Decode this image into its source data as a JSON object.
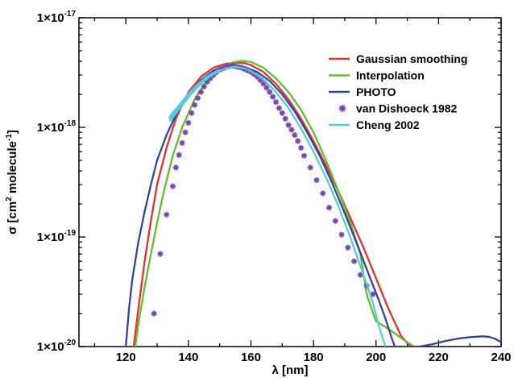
{
  "chart_data": {
    "type": "line",
    "xlabel": "λ [nm]",
    "ylabel": {
      "base": "σ [cm",
      "sup1": "2",
      "mid": " molecule",
      "sup2": "-1",
      "end": "]"
    },
    "xlim": [
      105,
      240
    ],
    "ylim": [
      1e-20,
      1e-17
    ],
    "yscale": "log",
    "x_ticks": [
      120,
      140,
      160,
      180,
      200,
      220,
      240
    ],
    "y_ticks": [
      {
        "value": 1e-20,
        "base": "1×10",
        "exp": "-20"
      },
      {
        "value": 1e-19,
        "base": "1×10",
        "exp": "-19"
      },
      {
        "value": 1e-18,
        "base": "1×10",
        "exp": "-18"
      },
      {
        "value": 1e-17,
        "base": "1×10",
        "exp": "-17"
      }
    ],
    "grid": false,
    "legend_position": "top-right",
    "series": [
      {
        "name": "Gaussian smoothing",
        "color": "#e03030",
        "style": "line",
        "x": [
          122.5,
          124,
          126,
          128,
          130,
          133,
          136,
          140,
          144,
          148,
          152,
          156,
          158,
          160,
          164,
          168,
          172,
          176,
          180,
          184,
          188,
          192,
          196,
          200,
          204,
          208,
          211
        ],
        "y": [
          1e-20,
          2.2e-20,
          6e-20,
          1.4e-19,
          3e-19,
          6.5e-19,
          1.2e-18,
          2.1e-18,
          2.9e-18,
          3.5e-18,
          3.8e-18,
          3.9e-18,
          3.85e-18,
          3.7e-18,
          3.2e-18,
          2.5e-18,
          1.8e-18,
          1.2e-18,
          7.5e-19,
          4.5e-19,
          2.6e-19,
          1.45e-19,
          8e-20,
          4.2e-20,
          2.2e-20,
          1.25e-20,
          1e-20
        ]
      },
      {
        "name": "Interpolation",
        "color": "#66bb33",
        "style": "line",
        "x": [
          123,
          124,
          126,
          128,
          130,
          132,
          135,
          138,
          142,
          146,
          150,
          154,
          157,
          160,
          164,
          168,
          172,
          176,
          180,
          184,
          188,
          192,
          195,
          197,
          200,
          204,
          208,
          212
        ],
        "y": [
          1e-20,
          1.6e-20,
          3.5e-20,
          7e-20,
          1.35e-19,
          2.5e-19,
          5.5e-19,
          1e-18,
          1.8e-18,
          2.7e-18,
          3.4e-18,
          3.9e-18,
          4.05e-18,
          3.95e-18,
          3.5e-18,
          2.8e-18,
          2.1e-18,
          1.45e-18,
          9e-19,
          5e-19,
          2.6e-19,
          1.3e-19,
          7e-20,
          3e-20,
          1.7e-20,
          1.45e-20,
          1.2e-20,
          1e-20
        ]
      },
      {
        "name": "PHOTO",
        "color": "#33449a",
        "style": "line",
        "x": [
          120,
          121,
          122,
          124,
          126,
          128,
          130,
          133,
          136,
          140,
          144,
          148,
          152,
          155,
          158,
          162,
          166,
          170,
          174,
          178,
          182,
          186,
          190,
          194,
          198,
          201,
          203,
          205,
          206,
          214,
          218,
          222,
          226,
          230,
          234,
          236,
          238,
          240
        ],
        "y": [
          1e-20,
          2.2e-20,
          4e-20,
          9e-20,
          1.7e-19,
          3e-19,
          5e-19,
          8.5e-19,
          1.3e-18,
          2e-18,
          2.7e-18,
          3.3e-18,
          3.6e-18,
          3.65e-18,
          3.55e-18,
          3.2e-18,
          2.65e-18,
          2e-18,
          1.4e-18,
          9e-19,
          5.5e-19,
          3.1e-19,
          1.65e-19,
          8.5e-20,
          4.3e-20,
          2.6e-20,
          1.8e-20,
          1.2e-20,
          1e-20,
          1e-20,
          1.05e-20,
          1.12e-20,
          1.18e-20,
          1.22e-20,
          1.24e-20,
          1.23e-20,
          1.18e-20,
          1.1e-20
        ]
      },
      {
        "name": "van Dishoeck 1982",
        "color": "#7744aa",
        "style": "marker",
        "x": [
          129,
          131,
          133,
          135,
          136,
          137,
          138,
          139,
          140,
          141,
          142,
          143,
          144,
          145,
          146,
          147,
          148,
          149,
          150,
          151,
          152,
          153,
          154,
          155,
          156,
          157,
          158,
          159,
          160,
          161,
          162,
          163,
          164,
          165,
          166,
          167,
          168,
          169,
          170,
          171,
          172,
          173,
          174,
          175,
          176,
          177,
          179,
          181,
          183,
          185,
          187,
          189,
          191,
          193,
          195,
          197,
          199
        ],
        "y": [
          2e-20,
          7e-20,
          1.6e-19,
          2.9e-19,
          4.3e-19,
          5.6e-19,
          7.2e-19,
          9e-19,
          1.1e-18,
          1.35e-18,
          1.6e-18,
          1.85e-18,
          2.1e-18,
          2.35e-18,
          2.6e-18,
          2.8e-18,
          3e-18,
          3.2e-18,
          3.35e-18,
          3.45e-18,
          3.55e-18,
          3.6e-18,
          3.65e-18,
          3.6e-18,
          3.55e-18,
          3.5e-18,
          3.4e-18,
          3.3e-18,
          3.2e-18,
          3.05e-18,
          2.9e-18,
          2.7e-18,
          2.5e-18,
          2.3e-18,
          2.1e-18,
          1.9e-18,
          1.7e-18,
          1.5e-18,
          1.35e-18,
          1.2e-18,
          1.05e-18,
          9.5e-19,
          8.5e-19,
          7.5e-19,
          6.5e-19,
          5.5e-19,
          4.3e-19,
          3.3e-19,
          2.5e-19,
          1.85e-19,
          1.4e-19,
          1.05e-19,
          8e-20,
          6e-20,
          4.5e-20,
          3.6e-20,
          3e-20
        ]
      },
      {
        "name": "Cheng 2002",
        "color": "#55ccdd",
        "style": "line",
        "noisy_start": true,
        "x": [
          134,
          136,
          138,
          140,
          142,
          144,
          146,
          148,
          150,
          152,
          154,
          156,
          158,
          160,
          164,
          168,
          172,
          176,
          180,
          184,
          188,
          192,
          196,
          199,
          201,
          203
        ],
        "y": [
          1.2e-18,
          1.4e-18,
          1.65e-18,
          1.95e-18,
          2.25e-18,
          2.55e-18,
          2.85e-18,
          3.1e-18,
          3.3e-18,
          3.45e-18,
          3.55e-18,
          3.55e-18,
          3.45e-18,
          3.25e-18,
          2.75e-18,
          2.1e-18,
          1.5e-18,
          9.8e-19,
          6e-19,
          3.5e-19,
          1.9e-19,
          9.5e-20,
          4.5e-20,
          2.5e-20,
          1.5e-20,
          1e-20
        ]
      }
    ]
  }
}
